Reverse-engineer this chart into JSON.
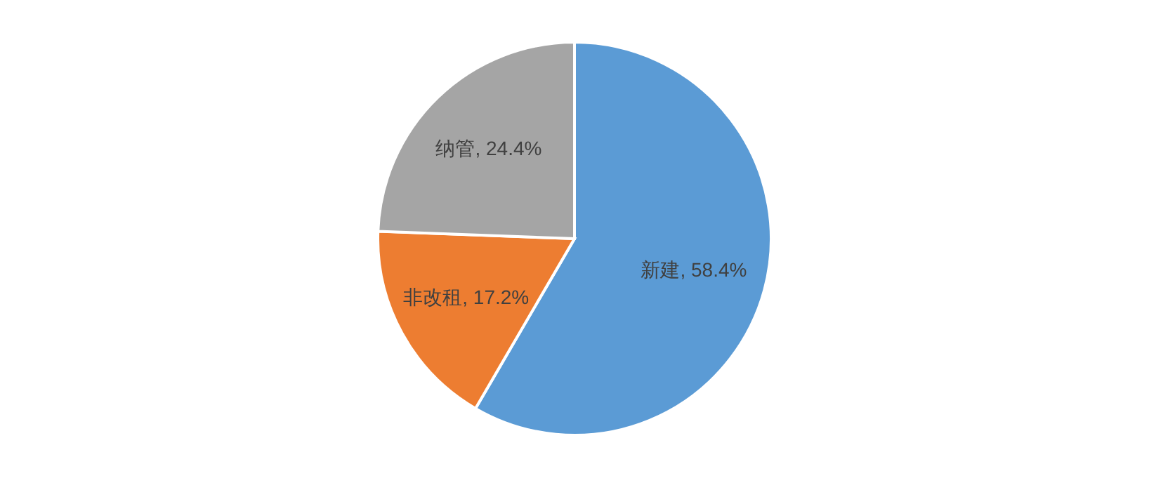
{
  "chart_data": {
    "type": "pie",
    "categories": [
      "新建",
      "非改租",
      "纳管"
    ],
    "values": [
      58.4,
      17.2,
      24.4
    ],
    "colors": [
      "#5b9bd5",
      "#ed7d31",
      "#a5a5a5"
    ],
    "value_labels": [
      "58.4%",
      "17.2%",
      "24.4%"
    ]
  }
}
